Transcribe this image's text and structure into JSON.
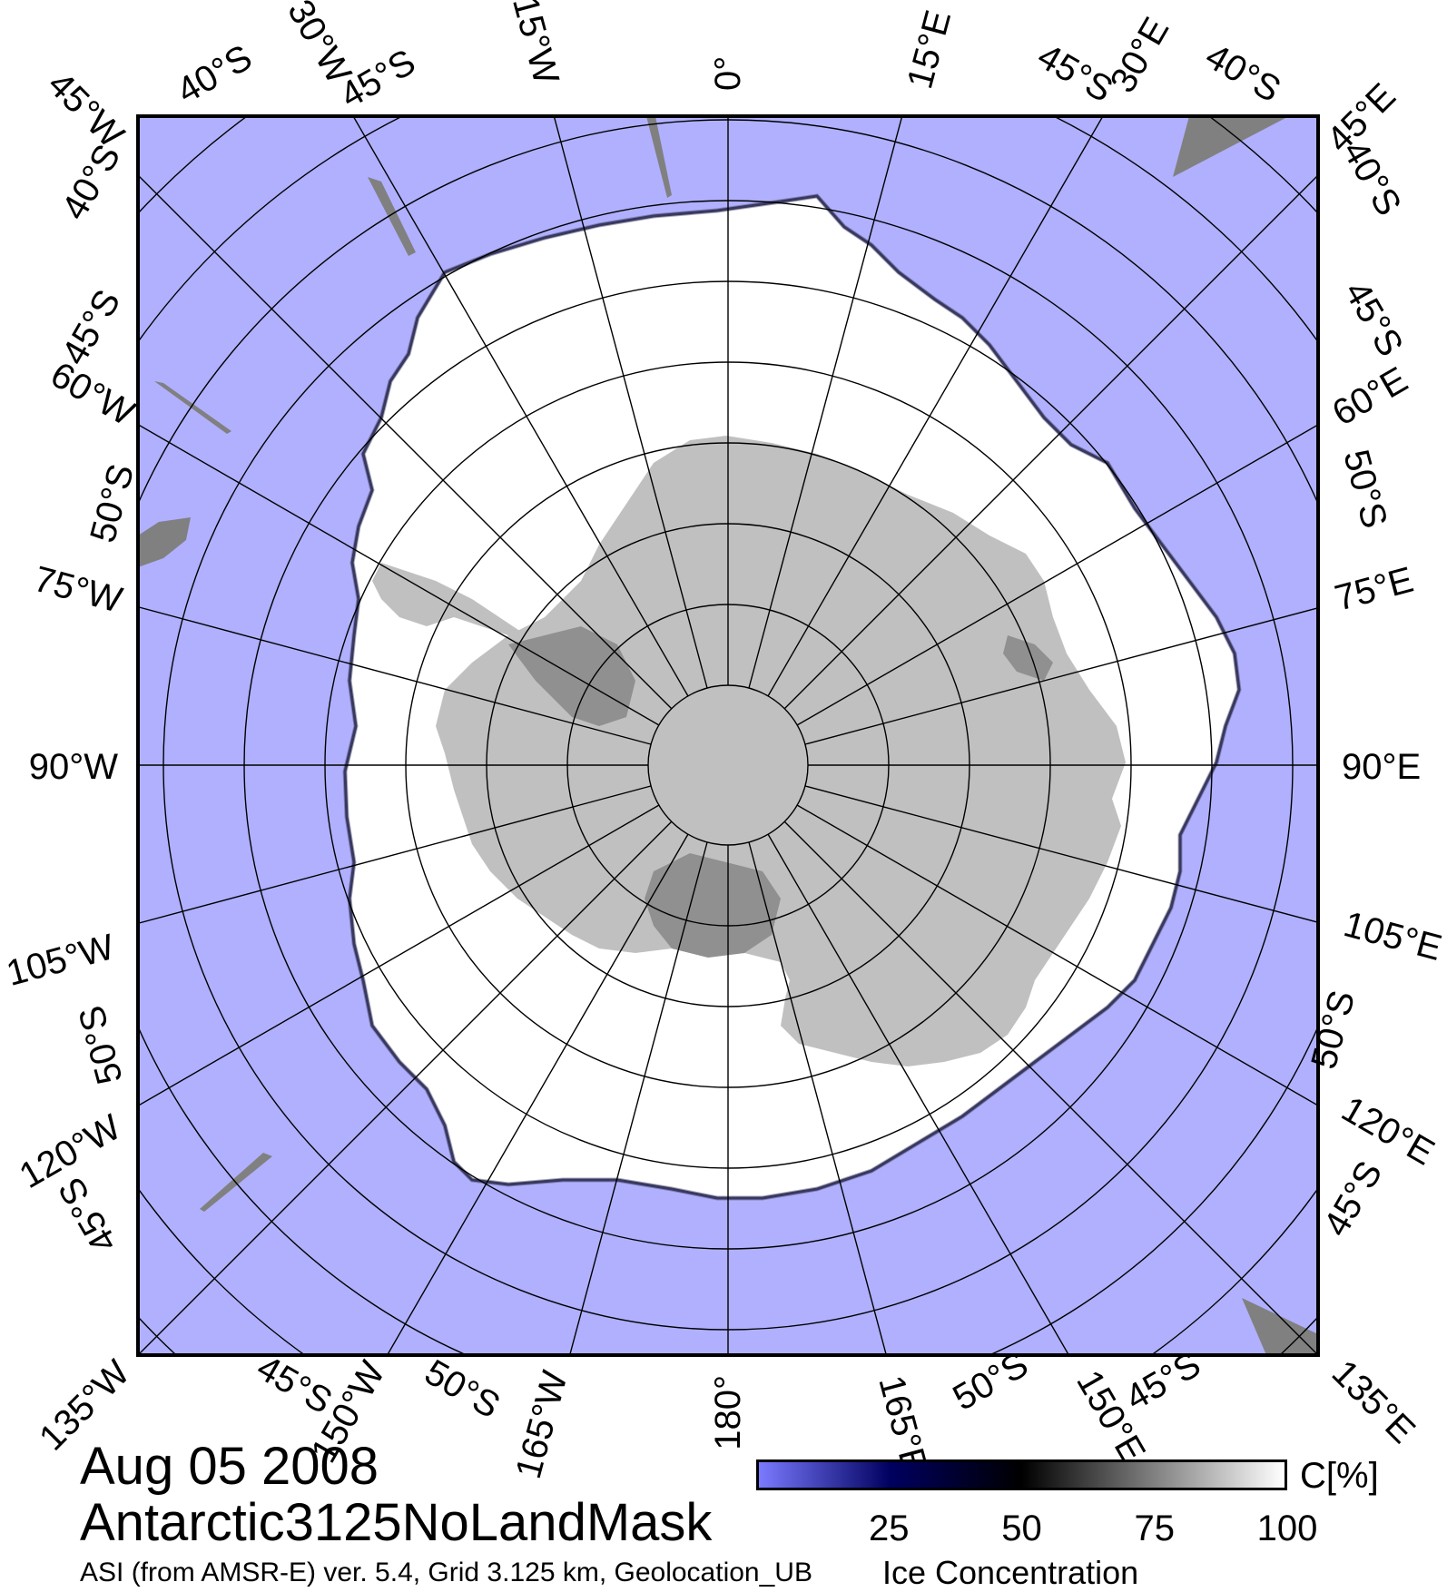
{
  "title": {
    "date": "Aug 05 2008",
    "mask": "Antarctic3125NoLandMask",
    "credit": "ASI (from AMSR-E) ver. 5.4,  Grid 3.125 km, Geolocation_UB"
  },
  "colors": {
    "ocean": "#b0b0ff",
    "ice": "#ffffff",
    "land": "#c0c0c0",
    "shelf_ice": "#909090",
    "grid": "#000000",
    "colorbar_low": "#7a7aff",
    "colorbar_mid": "#000060",
    "colorbar_black": "#000000",
    "colorbar_high": "#ffffff"
  },
  "graticule": {
    "meridians_top": [
      "45°W",
      "30°W",
      "15°W",
      "0°",
      "15°E",
      "30°E",
      "45°E"
    ],
    "meridians_left": [
      "60°W",
      "75°W",
      "90°W",
      "105°W",
      "120°W"
    ],
    "meridians_right": [
      "60°E",
      "75°E",
      "90°E",
      "105°E",
      "120°E"
    ],
    "meridians_bottom": [
      "135°W",
      "150°W",
      "165°W",
      "180°",
      "165°E",
      "150°E",
      "135°E"
    ],
    "latitudes_top": [
      "40°S",
      "45°S",
      "45°S",
      "40°S"
    ],
    "latitudes_left": [
      "40°S",
      "45°S",
      "50°S",
      "50°S",
      "45°S"
    ],
    "latitudes_right": [
      "40°S",
      "45°S",
      "50°S",
      "50°S",
      "45°S"
    ],
    "latitudes_bottom": [
      "45°S",
      "50°S",
      "50°S",
      "45°S"
    ]
  },
  "colorbar": {
    "unit": "C[%]",
    "caption": "Ice Concentration",
    "ticks": [
      "25",
      "50",
      "75",
      "100"
    ],
    "range": [
      0,
      100
    ]
  }
}
